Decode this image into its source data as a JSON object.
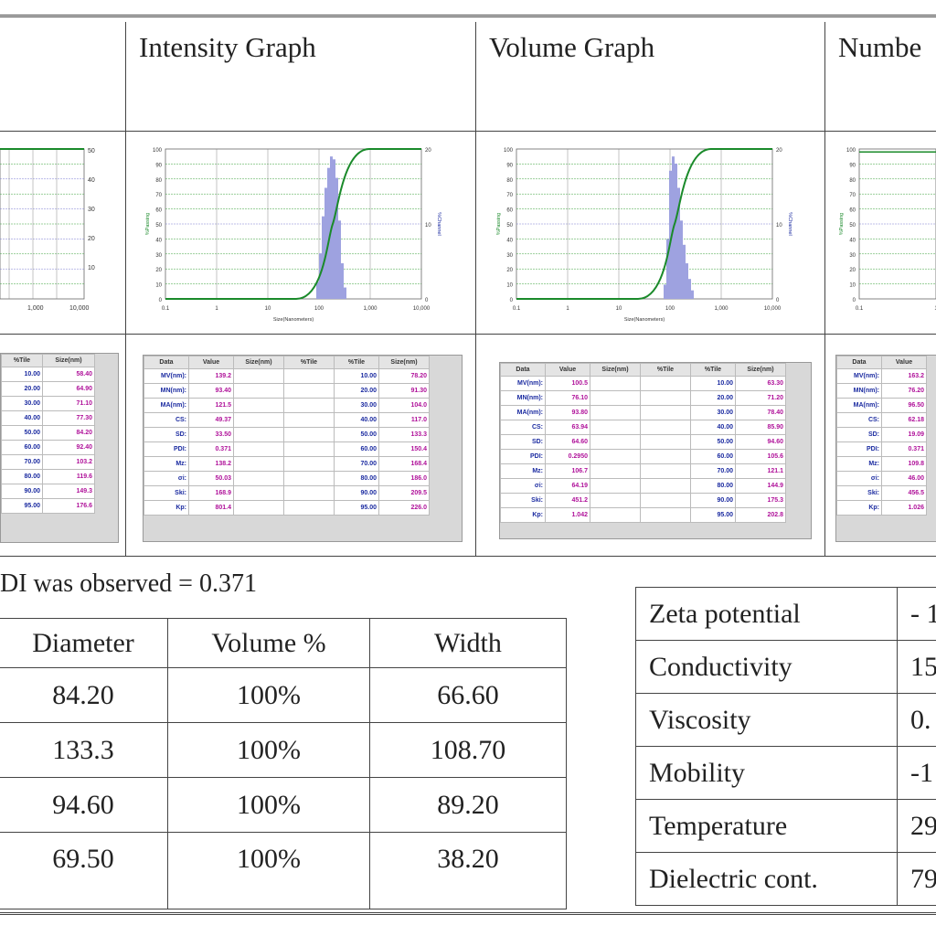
{
  "headers": [
    "Intensity Graph",
    "Volume Graph",
    "Numbe"
  ],
  "panels": [
    {
      "left_axis": [
        "100",
        "90",
        "80",
        "70",
        "60",
        "50",
        "40",
        "30",
        "20",
        "10",
        "0"
      ],
      "right_axis": [
        "20",
        "10",
        "0"
      ],
      "x_ticks": [
        "0.1",
        "1",
        "10",
        "100",
        "1,000",
        "10,000"
      ],
      "left_label": "%Passing",
      "right_label": "%Channel",
      "xlabel": "Size(Nanometers)"
    },
    {
      "left_axis": [
        "100",
        "90",
        "80",
        "70",
        "60",
        "50",
        "40",
        "30",
        "20",
        "10",
        "0"
      ],
      "right_axis": [
        "20",
        "10",
        "0"
      ],
      "x_ticks": [
        "0.1",
        "1",
        "10",
        "100",
        "1,000",
        "10,000"
      ],
      "left_label": "%Passing",
      "right_label": "%Channel",
      "xlabel": "Size(Nanometers)"
    },
    {
      "left_axis": [
        "100",
        "90",
        "80",
        "70",
        "60",
        "50",
        "40",
        "30",
        "20",
        "10",
        "0"
      ],
      "right_axis": [],
      "x_ticks": [
        "0.1",
        "1"
      ],
      "left_label": "%Passing",
      "right_label": "",
      "xlabel": ""
    }
  ],
  "left_partial": {
    "right_axis": [
      "50",
      "40",
      "30",
      "20",
      "10"
    ],
    "x_ticks": [
      "1,000",
      "10,000"
    ],
    "col_headers": [
      "%Tile",
      "Size(nm)"
    ],
    "rows": [
      [
        "10.00",
        "58.40"
      ],
      [
        "20.00",
        "64.90"
      ],
      [
        "30.00",
        "71.10"
      ],
      [
        "40.00",
        "77.30"
      ],
      [
        "50.00",
        "84.20"
      ],
      [
        "60.00",
        "92.40"
      ],
      [
        "70.00",
        "103.2"
      ],
      [
        "80.00",
        "119.6"
      ],
      [
        "90.00",
        "149.3"
      ],
      [
        "95.00",
        "176.6"
      ]
    ]
  },
  "stat_tables": [
    {
      "headers": [
        "Data",
        "Value",
        "Size(nm)",
        "%Tile",
        "%Tile",
        "Size(nm)"
      ],
      "rows": [
        [
          "MV(nm):",
          "139.2",
          "10.00",
          "78.20"
        ],
        [
          "MN(nm):",
          "93.40",
          "20.00",
          "91.30"
        ],
        [
          "MA(nm):",
          "121.5",
          "30.00",
          "104.0"
        ],
        [
          "CS:",
          "49.37",
          "40.00",
          "117.0"
        ],
        [
          "SD:",
          "33.50",
          "50.00",
          "133.3"
        ],
        [
          "PDI:",
          "0.371",
          "60.00",
          "150.4"
        ],
        [
          "Mz:",
          "138.2",
          "70.00",
          "168.4"
        ],
        [
          "σi:",
          "50.03",
          "80.00",
          "186.0"
        ],
        [
          "Ski:",
          "168.9",
          "90.00",
          "209.5"
        ],
        [
          "Kp:",
          "801.4",
          "95.00",
          "226.0"
        ]
      ]
    },
    {
      "headers": [
        "Data",
        "Value",
        "Size(nm)",
        "%Tile",
        "%Tile",
        "Size(nm)"
      ],
      "rows": [
        [
          "MV(nm):",
          "100.5",
          "10.00",
          "63.30"
        ],
        [
          "MN(nm):",
          "76.10",
          "20.00",
          "71.20"
        ],
        [
          "MA(nm):",
          "93.80",
          "30.00",
          "78.40"
        ],
        [
          "CS:",
          "63.94",
          "40.00",
          "85.90"
        ],
        [
          "SD:",
          "64.60",
          "50.00",
          "94.60"
        ],
        [
          "PDI:",
          "0.2950",
          "60.00",
          "105.6"
        ],
        [
          "Mz:",
          "106.7",
          "70.00",
          "121.1"
        ],
        [
          "σi:",
          "64.19",
          "80.00",
          "144.9"
        ],
        [
          "Ski:",
          "451.2",
          "90.00",
          "175.3"
        ],
        [
          "Kp:",
          "1.042",
          "95.00",
          "202.8"
        ]
      ]
    },
    {
      "headers": [
        "Data",
        "Value"
      ],
      "rows": [
        [
          "MV(nm):",
          "163.2"
        ],
        [
          "MN(nm):",
          "76.20"
        ],
        [
          "MA(nm):",
          "96.50"
        ],
        [
          "CS:",
          "62.18"
        ],
        [
          "SD:",
          "19.09"
        ],
        [
          "PDI:",
          "0.371"
        ],
        [
          "Mz:",
          "109.8"
        ],
        [
          "σi:",
          "46.00"
        ],
        [
          "Ski:",
          "456.5"
        ],
        [
          "Kp:",
          "1.026"
        ]
      ]
    }
  ],
  "pdi_text": "DI was observed = 0.371",
  "results_table": {
    "headers": [
      "Diameter",
      "Volume %",
      "Width"
    ],
    "rows": [
      [
        "84.20",
        "100%",
        "66.60"
      ],
      [
        "133.3",
        "100%",
        "108.70"
      ],
      [
        "94.60",
        "100%",
        "89.20"
      ],
      [
        "69.50",
        "100%",
        "38.20"
      ]
    ]
  },
  "zeta_table": {
    "rows": [
      [
        "Zeta potential",
        "- 1"
      ],
      [
        "Conductivity",
        "15"
      ],
      [
        "Viscosity",
        "0."
      ],
      [
        "Mobility",
        "-1"
      ],
      [
        "Temperature",
        "29"
      ],
      [
        "Dielectric cont.",
        "79"
      ]
    ]
  },
  "colors": {
    "curve": "#1a8a2a",
    "histogram": "#9ea2e0",
    "grid_green": "#3aa03a",
    "label_blue": "#1a2aa0",
    "value_magenta": "#b0129a"
  }
}
